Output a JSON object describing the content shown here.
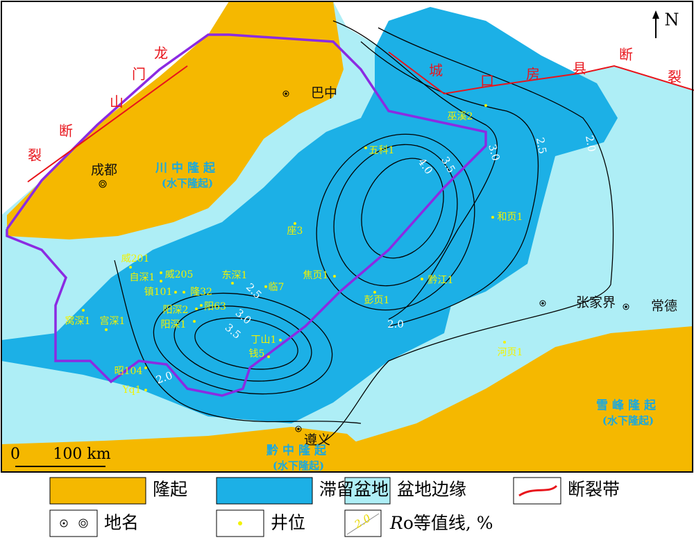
{
  "north": "N",
  "fault_labels": [
    [
      "龙",
      "门",
      "山",
      "断",
      "裂"
    ],
    [
      "城",
      "口",
      "房",
      "县",
      "断",
      "裂"
    ]
  ],
  "places": [
    "巴中",
    "成都",
    "张家界",
    "常德",
    "遵义"
  ],
  "uplifts": [
    [
      "川中隆起",
      "(水下隆起)"
    ],
    [
      "雪峰隆起",
      "(水下隆起)"
    ],
    [
      "黔中隆起",
      "(水下隆起)"
    ]
  ],
  "wells": [
    "巫溪2",
    "五科1",
    "座3",
    "和页1",
    "焦页1",
    "黔江1",
    "彭页1",
    "丁山1",
    "钱5",
    "威201",
    "自深1",
    "威205",
    "东深1",
    "镇101",
    "隆32",
    "临7",
    "阳深2",
    "阳63",
    "阳深1",
    "窝深1",
    "宫深1",
    "昭104",
    "Yq1",
    "河页1"
  ],
  "contour_labels": [
    "3.0",
    "2.5",
    "2.0",
    "3.5",
    "4.0",
    "2.5",
    "3.0",
    "3.5",
    "2.0",
    "2.0"
  ],
  "scale": [
    "0",
    "100 km"
  ],
  "legend": [
    {
      "label": "隆起"
    },
    {
      "label": "滞留盆地"
    },
    {
      "label": "盆地边缘"
    },
    {
      "label": "断裂带"
    },
    {
      "label": "地名"
    },
    {
      "label": "井位"
    },
    {
      "sample": "2.0",
      "label_italic": "R",
      "label": "o等值线, %"
    }
  ]
}
